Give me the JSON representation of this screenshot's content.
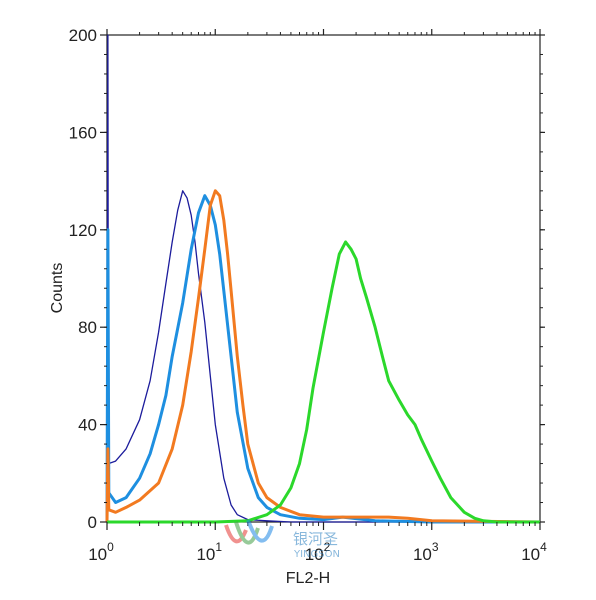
{
  "chart_data": {
    "type": "line",
    "xlabel": "FL2-H",
    "ylabel": "Counts",
    "x_scale": "log",
    "xlim": [
      1,
      10000
    ],
    "ylim": [
      0,
      200
    ],
    "x_ticks": [
      {
        "value": 1,
        "base": "10",
        "exp": "0"
      },
      {
        "value": 10,
        "base": "10",
        "exp": "1"
      },
      {
        "value": 100,
        "base": "10",
        "exp": "2"
      },
      {
        "value": 1000,
        "base": "10",
        "exp": "3"
      },
      {
        "value": 10000,
        "base": "10",
        "exp": "4"
      }
    ],
    "y_ticks": [
      0,
      40,
      80,
      120,
      160,
      200
    ],
    "grid": false,
    "series": [
      {
        "color": "#1c1c9c",
        "x": [
          1.0,
          1.02,
          1.03,
          1.2,
          1.5,
          2,
          2.5,
          3,
          3.5,
          4,
          4.5,
          5,
          5.5,
          6,
          6.5,
          7,
          8,
          9,
          10,
          12,
          14,
          16,
          20,
          30,
          50,
          100,
          1000,
          10000
        ],
        "y": [
          0,
          210,
          24,
          25,
          30,
          42,
          58,
          78,
          98,
          115,
          128,
          136,
          133,
          126,
          115,
          102,
          82,
          60,
          40,
          18,
          7,
          3,
          1,
          0.5,
          0,
          0,
          0,
          0
        ]
      },
      {
        "color": "#1e8fe0",
        "x": [
          1.0,
          1.02,
          1.04,
          1.2,
          1.5,
          2,
          2.5,
          3,
          3.5,
          4,
          5,
          6,
          7,
          8,
          9,
          10,
          11,
          12,
          14,
          16,
          20,
          25,
          30,
          40,
          60,
          100,
          150,
          300,
          1000,
          10000
        ],
        "y": [
          0,
          120,
          12,
          8,
          10,
          18,
          28,
          40,
          52,
          68,
          90,
          112,
          127,
          134,
          130,
          122,
          110,
          95,
          68,
          45,
          22,
          10,
          6,
          3,
          1.5,
          1,
          2,
          0.5,
          0,
          0
        ]
      },
      {
        "color": "#f27a20",
        "x": [
          1.0,
          1.02,
          1.04,
          1.2,
          1.5,
          2,
          3,
          4,
          5,
          6,
          7,
          8,
          9,
          10,
          11,
          12,
          13,
          14,
          16,
          18,
          20,
          25,
          30,
          40,
          60,
          100,
          200,
          400,
          600,
          1000,
          10000
        ],
        "y": [
          0,
          30,
          5,
          4,
          6,
          9,
          16,
          30,
          48,
          70,
          92,
          112,
          130,
          136,
          134,
          124,
          110,
          95,
          68,
          48,
          32,
          16,
          10,
          6,
          3,
          2,
          2,
          2,
          1.5,
          0.5,
          0
        ]
      },
      {
        "color": "#2bd82b",
        "x": [
          1,
          10,
          20,
          30,
          40,
          50,
          60,
          70,
          80,
          100,
          120,
          140,
          160,
          180,
          200,
          220,
          250,
          300,
          350,
          400,
          500,
          600,
          700,
          800,
          1000,
          1200,
          1500,
          2000,
          2500,
          3000,
          4000,
          10000
        ],
        "y": [
          0,
          0,
          0.5,
          3,
          7,
          14,
          24,
          38,
          55,
          78,
          96,
          110,
          115,
          112,
          108,
          100,
          92,
          80,
          68,
          58,
          50,
          44,
          40,
          34,
          25,
          18,
          10,
          4,
          1.5,
          0.5,
          0,
          0
        ]
      }
    ]
  },
  "watermark": {
    "text_cn": "银河圣",
    "text_en": "YINGSON"
  }
}
